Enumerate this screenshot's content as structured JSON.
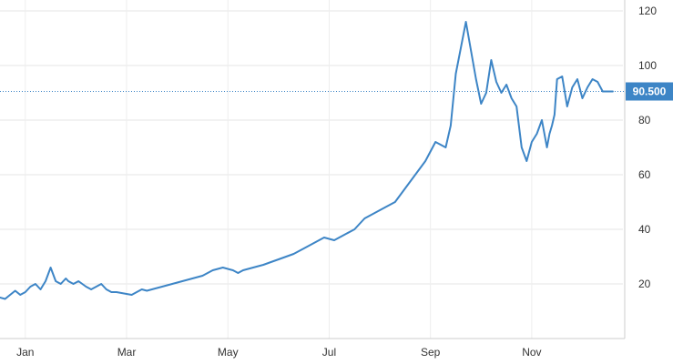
{
  "chart_data": {
    "type": "line",
    "title": "",
    "xlabel": "",
    "ylabel": "",
    "x_tick_labels": [
      "Jan",
      "Mar",
      "May",
      "Jul",
      "Sep",
      "Nov"
    ],
    "x_tick_months": [
      1,
      3,
      5,
      7,
      9,
      11
    ],
    "y_ticks": [
      20,
      40,
      60,
      80,
      100,
      120
    ],
    "ylim": [
      0,
      120
    ],
    "xlim": [
      0.0,
      12.3
    ],
    "grid": true,
    "last_value": 90.5,
    "last_value_label": "90.500",
    "line_color": "#3d85c6",
    "series": [
      {
        "x": [
          0.0,
          0.1,
          0.2,
          0.3,
          0.4,
          0.5,
          0.6,
          0.7,
          0.8,
          0.9,
          1.0,
          1.1,
          1.2,
          1.3,
          1.35,
          1.45,
          1.55,
          1.7,
          1.8,
          1.9,
          2.0,
          2.1,
          2.2,
          2.3,
          2.45,
          2.6,
          2.7,
          2.8,
          2.9,
          3.0,
          3.2,
          3.4,
          3.6,
          3.8,
          4.0,
          4.2,
          4.4,
          4.6,
          4.7,
          4.8,
          5.0,
          5.2,
          5.35,
          5.5,
          5.8,
          6.0,
          6.2,
          6.4,
          6.6,
          6.8,
          7.0,
          7.1,
          7.2,
          7.4,
          7.6,
          7.8,
          8.0,
          8.2,
          8.4,
          8.6,
          8.8,
          8.9,
          9.0,
          9.2,
          9.4,
          9.5,
          9.6,
          9.7,
          9.8,
          9.9,
          10.0,
          10.1,
          10.2,
          10.3,
          10.4,
          10.5,
          10.6,
          10.7,
          10.8,
          10.85,
          10.9,
          10.95,
          11.0,
          11.1,
          11.2,
          11.3,
          11.4,
          11.5,
          11.6,
          11.7,
          11.8,
          11.9,
          12.0,
          12.1
        ],
        "y": [
          15,
          14.5,
          16,
          17.5,
          16,
          17,
          19,
          20,
          18,
          21,
          26,
          21,
          20,
          22,
          21,
          20,
          21,
          19,
          18,
          19,
          20,
          18,
          17,
          17,
          16.5,
          16,
          17,
          18,
          17.5,
          18,
          19,
          20,
          21,
          22,
          23,
          25,
          26,
          25,
          24,
          25,
          26,
          27,
          28,
          29,
          31,
          33,
          35,
          37,
          36,
          38,
          40,
          42,
          44,
          46,
          48,
          50,
          55,
          60,
          65,
          72,
          70,
          78,
          97,
          116,
          95,
          86,
          90,
          102,
          94,
          90,
          93,
          88,
          85,
          70,
          65,
          72,
          75,
          80,
          70,
          75,
          78,
          82,
          95,
          96,
          85,
          92,
          95,
          88,
          92,
          95,
          94,
          90.5,
          90.5,
          90.5
        ]
      }
    ]
  }
}
